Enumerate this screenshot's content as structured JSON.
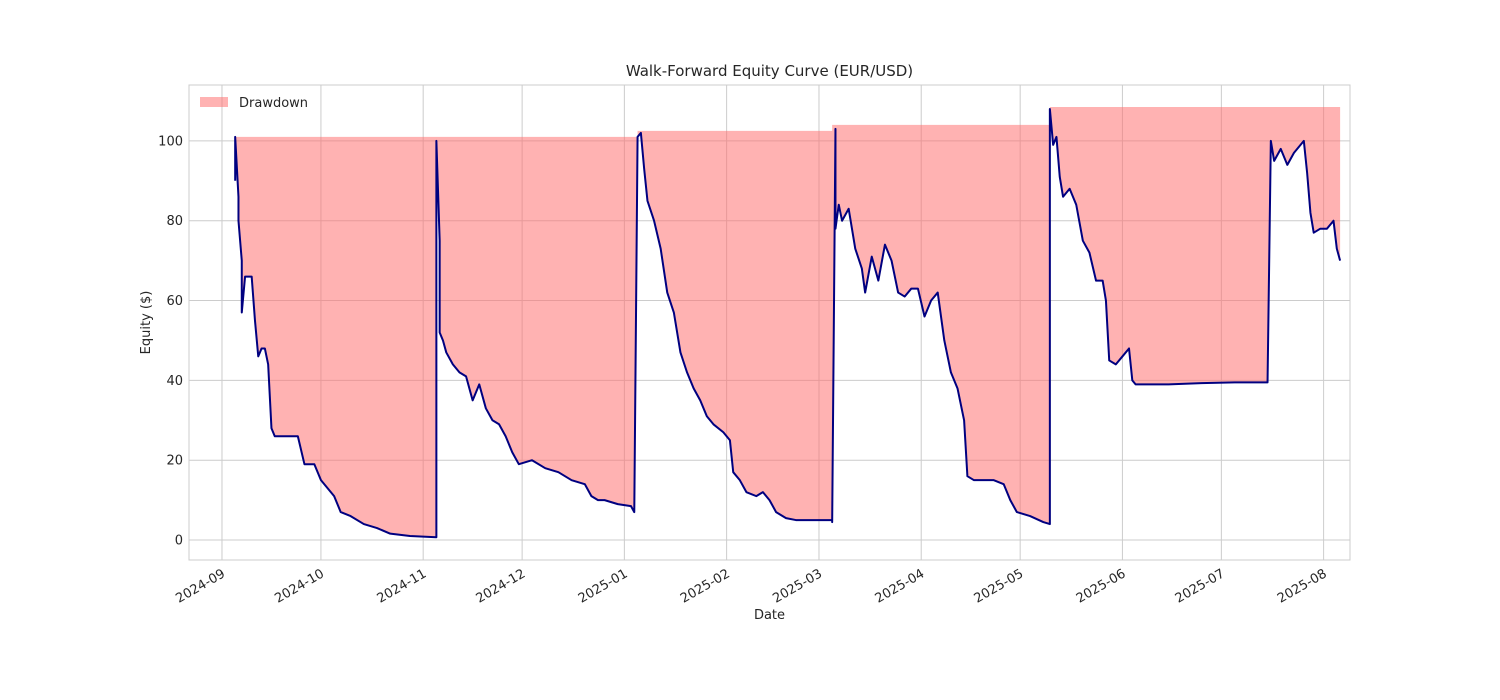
{
  "chart_data": {
    "type": "line",
    "title": "Walk-Forward Equity Curve (EUR/USD)",
    "xlabel": "Date",
    "ylabel": "Equity ($)",
    "xlim": [
      "2024-08-22",
      "2025-08-09"
    ],
    "ylim": [
      -5,
      114
    ],
    "grid": true,
    "legend_placement": "upper left",
    "x_ticks": [
      "2024-09",
      "2024-10",
      "2024-11",
      "2024-12",
      "2025-01",
      "2025-02",
      "2025-03",
      "2025-04",
      "2025-05",
      "2025-06",
      "2025-07",
      "2025-08"
    ],
    "y_ticks": [
      0,
      20,
      40,
      60,
      80,
      100
    ],
    "legend": [
      {
        "label": "Drawdown",
        "color": "#ff6b6b"
      }
    ],
    "series": [
      {
        "kind": "line",
        "color": "#000080",
        "points": [
          [
            "2024-09-05",
            90
          ],
          [
            "2024-09-05",
            101
          ],
          [
            "2024-09-06",
            86
          ],
          [
            "2024-09-06",
            80
          ],
          [
            "2024-09-07",
            70
          ],
          [
            "2024-09-07",
            57
          ],
          [
            "2024-09-08",
            66
          ],
          [
            "2024-09-09",
            66
          ],
          [
            "2024-09-10",
            66
          ],
          [
            "2024-09-11",
            55
          ],
          [
            "2024-09-12",
            46
          ],
          [
            "2024-09-13",
            48
          ],
          [
            "2024-09-14",
            48
          ],
          [
            "2024-09-15",
            44
          ],
          [
            "2024-09-16",
            28
          ],
          [
            "2024-09-17",
            26
          ],
          [
            "2024-09-20",
            26
          ],
          [
            "2024-09-24",
            26
          ],
          [
            "2024-09-26",
            19
          ],
          [
            "2024-09-29",
            19
          ],
          [
            "2024-10-01",
            15
          ],
          [
            "2024-10-05",
            11
          ],
          [
            "2024-10-07",
            7
          ],
          [
            "2024-10-10",
            6
          ],
          [
            "2024-10-14",
            4
          ],
          [
            "2024-10-18",
            3
          ],
          [
            "2024-10-22",
            1.6
          ],
          [
            "2024-10-28",
            1.0
          ],
          [
            "2024-11-05",
            0.7
          ],
          [
            "2024-11-05",
            100
          ],
          [
            "2024-11-06",
            75
          ],
          [
            "2024-11-06",
            52
          ],
          [
            "2024-11-07",
            50
          ],
          [
            "2024-11-08",
            47
          ],
          [
            "2024-11-10",
            44
          ],
          [
            "2024-11-12",
            42
          ],
          [
            "2024-11-14",
            41
          ],
          [
            "2024-11-16",
            35
          ],
          [
            "2024-11-18",
            39
          ],
          [
            "2024-11-20",
            33
          ],
          [
            "2024-11-22",
            30
          ],
          [
            "2024-11-24",
            29
          ],
          [
            "2024-11-26",
            26
          ],
          [
            "2024-11-28",
            22
          ],
          [
            "2024-11-30",
            19
          ],
          [
            "2024-12-04",
            20
          ],
          [
            "2024-12-08",
            18
          ],
          [
            "2024-12-12",
            17
          ],
          [
            "2024-12-16",
            15
          ],
          [
            "2024-12-20",
            14
          ],
          [
            "2024-12-22",
            11
          ],
          [
            "2024-12-24",
            10
          ],
          [
            "2024-12-26",
            10
          ],
          [
            "2024-12-30",
            9
          ],
          [
            "2025-01-03",
            8.5
          ],
          [
            "2025-01-04",
            7
          ],
          [
            "2025-01-05",
            101
          ],
          [
            "2025-01-06",
            102
          ],
          [
            "2025-01-07",
            93
          ],
          [
            "2025-01-08",
            85
          ],
          [
            "2025-01-10",
            80
          ],
          [
            "2025-01-12",
            73
          ],
          [
            "2025-01-14",
            62
          ],
          [
            "2025-01-16",
            57
          ],
          [
            "2025-01-18",
            47
          ],
          [
            "2025-01-20",
            42
          ],
          [
            "2025-01-22",
            38
          ],
          [
            "2025-01-24",
            35
          ],
          [
            "2025-01-26",
            31
          ],
          [
            "2025-01-28",
            29
          ],
          [
            "2025-01-31",
            27
          ],
          [
            "2025-02-02",
            25
          ],
          [
            "2025-02-03",
            17
          ],
          [
            "2025-02-05",
            15
          ],
          [
            "2025-02-07",
            12
          ],
          [
            "2025-02-10",
            11
          ],
          [
            "2025-02-12",
            12
          ],
          [
            "2025-02-14",
            10
          ],
          [
            "2025-02-16",
            7
          ],
          [
            "2025-02-19",
            5.5
          ],
          [
            "2025-02-22",
            5
          ],
          [
            "2025-03-01",
            5
          ],
          [
            "2025-03-05",
            5
          ],
          [
            "2025-03-05",
            4.5
          ],
          [
            "2025-03-06",
            103
          ],
          [
            "2025-03-06",
            78
          ],
          [
            "2025-03-07",
            84
          ],
          [
            "2025-03-08",
            80
          ],
          [
            "2025-03-10",
            83
          ],
          [
            "2025-03-12",
            73
          ],
          [
            "2025-03-14",
            68
          ],
          [
            "2025-03-15",
            62
          ],
          [
            "2025-03-17",
            71
          ],
          [
            "2025-03-19",
            65
          ],
          [
            "2025-03-21",
            74
          ],
          [
            "2025-03-23",
            70
          ],
          [
            "2025-03-25",
            62
          ],
          [
            "2025-03-27",
            61
          ],
          [
            "2025-03-29",
            63
          ],
          [
            "2025-03-31",
            63
          ],
          [
            "2025-04-02",
            56
          ],
          [
            "2025-04-04",
            60
          ],
          [
            "2025-04-06",
            62
          ],
          [
            "2025-04-08",
            50
          ],
          [
            "2025-04-10",
            42
          ],
          [
            "2025-04-12",
            38
          ],
          [
            "2025-04-14",
            30
          ],
          [
            "2025-04-15",
            16
          ],
          [
            "2025-04-17",
            15
          ],
          [
            "2025-04-20",
            15
          ],
          [
            "2025-04-23",
            15
          ],
          [
            "2025-04-26",
            14
          ],
          [
            "2025-04-28",
            10
          ],
          [
            "2025-04-30",
            7
          ],
          [
            "2025-05-04",
            6
          ],
          [
            "2025-05-08",
            4.5
          ],
          [
            "2025-05-10",
            4
          ],
          [
            "2025-05-10",
            108
          ],
          [
            "2025-05-11",
            99
          ],
          [
            "2025-05-12",
            101
          ],
          [
            "2025-05-13",
            91
          ],
          [
            "2025-05-14",
            86
          ],
          [
            "2025-05-16",
            88
          ],
          [
            "2025-05-18",
            84
          ],
          [
            "2025-05-20",
            75
          ],
          [
            "2025-05-22",
            72
          ],
          [
            "2025-05-24",
            65
          ],
          [
            "2025-05-26",
            65
          ],
          [
            "2025-05-27",
            60
          ],
          [
            "2025-05-28",
            45
          ],
          [
            "2025-05-30",
            44
          ],
          [
            "2025-06-01",
            46
          ],
          [
            "2025-06-03",
            48
          ],
          [
            "2025-06-04",
            40
          ],
          [
            "2025-06-05",
            39
          ],
          [
            "2025-06-15",
            39
          ],
          [
            "2025-06-25",
            39.3
          ],
          [
            "2025-07-05",
            39.5
          ],
          [
            "2025-07-15",
            39.5
          ],
          [
            "2025-07-16",
            100
          ],
          [
            "2025-07-17",
            95
          ],
          [
            "2025-07-19",
            98
          ],
          [
            "2025-07-21",
            94
          ],
          [
            "2025-07-23",
            97
          ],
          [
            "2025-07-25",
            99
          ],
          [
            "2025-07-26",
            100
          ],
          [
            "2025-07-27",
            92
          ],
          [
            "2025-07-28",
            82
          ],
          [
            "2025-07-29",
            77
          ],
          [
            "2025-07-31",
            78
          ],
          [
            "2025-08-02",
            78
          ],
          [
            "2025-08-04",
            80
          ],
          [
            "2025-08-05",
            73
          ],
          [
            "2025-08-06",
            70
          ]
        ]
      }
    ],
    "drawdown_fill": {
      "label": "Drawdown",
      "color": "#ff6b6b",
      "upper": [
        [
          "2024-09-05",
          101
        ],
        [
          "2024-11-05",
          101
        ],
        [
          "2024-11-05",
          101
        ],
        [
          "2025-01-05",
          101
        ],
        [
          "2025-01-05",
          102.5
        ],
        [
          "2025-03-05",
          102.5
        ],
        [
          "2025-03-05",
          104
        ],
        [
          "2025-05-10",
          104
        ],
        [
          "2025-05-10",
          108.5
        ],
        [
          "2025-08-06",
          108.5
        ]
      ]
    }
  }
}
